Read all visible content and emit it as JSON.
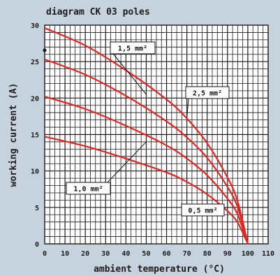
{
  "chart_data": {
    "type": "line",
    "title": "diagram CK 03 poles",
    "xlabel": "ambient temperature (°C)",
    "ylabel": "working current (A)",
    "xlim": [
      0,
      110
    ],
    "ylim": [
      0,
      30
    ],
    "xticks": [
      "0",
      "10",
      "20",
      "30",
      "40",
      "50",
      "60",
      "70",
      "80",
      "90",
      "100",
      "110"
    ],
    "yticks": [
      "0",
      "5",
      "10",
      "15",
      "20",
      "25",
      "30"
    ],
    "grid": true,
    "colors": {
      "background": "#c6d2dd",
      "plot_background": "#ffffff",
      "grid": "#1a1a1a",
      "curve": "#e8231f"
    },
    "series": [
      {
        "name": "0,5 mm²",
        "x": [
          0,
          20,
          40,
          60,
          70,
          80,
          90,
          95,
          100
        ],
        "y": [
          14.7,
          13.4,
          11.7,
          9.8,
          8.5,
          6.8,
          4.5,
          2.9,
          0
        ]
      },
      {
        "name": "1,0 mm²",
        "x": [
          0,
          20,
          40,
          60,
          70,
          80,
          90,
          95,
          100
        ],
        "y": [
          20.2,
          18.5,
          16.2,
          13.5,
          11.7,
          9.4,
          6.2,
          4.0,
          0
        ]
      },
      {
        "name": "1,5 mm²",
        "x": [
          0,
          20,
          40,
          60,
          70,
          80,
          90,
          95,
          100
        ],
        "y": [
          25.3,
          23.2,
          20.3,
          16.8,
          14.6,
          11.8,
          7.8,
          5.0,
          0
        ]
      },
      {
        "name": "2,5 mm²",
        "x": [
          0,
          20,
          40,
          60,
          70,
          80,
          90,
          95,
          100
        ],
        "y": [
          29.6,
          27.2,
          23.8,
          19.8,
          17.2,
          13.8,
          9.1,
          5.8,
          0
        ]
      }
    ],
    "annotations": [
      {
        "label": "1,5 mm²",
        "point": [
          50,
          20.5
        ]
      },
      {
        "label": "2,5 mm²",
        "point": [
          70,
          17.3
        ]
      },
      {
        "label": "1,0 mm²",
        "point": [
          50,
          14.0
        ]
      },
      {
        "label": "0,5 mm²",
        "point": [
          85,
          5.2
        ]
      }
    ]
  }
}
